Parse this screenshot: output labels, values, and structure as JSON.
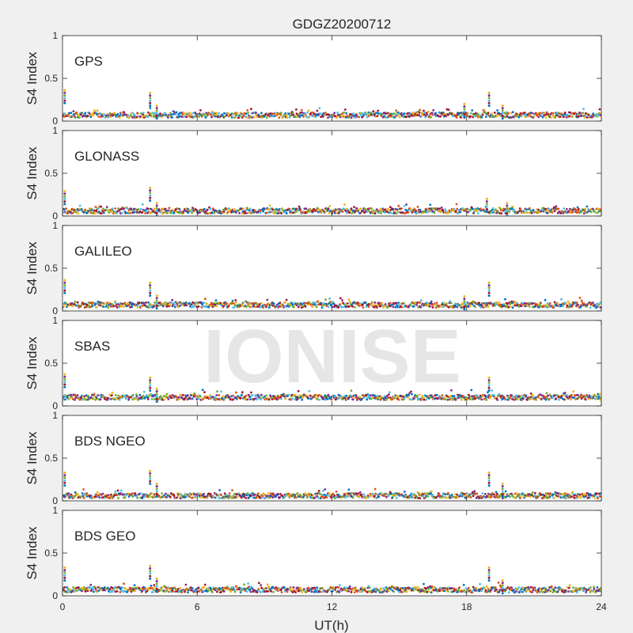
{
  "chart_data": {
    "type": "scatter",
    "title": "GDGZ20200712",
    "xlabel": "UT(h)",
    "ylabel": "S4 Index",
    "xlim": [
      0,
      24
    ],
    "ylim": [
      0,
      1
    ],
    "xticks": [
      0,
      6,
      12,
      18,
      24
    ],
    "yticks": [
      0,
      0.5,
      1
    ],
    "xticklabels": [
      "0",
      "6",
      "12",
      "18",
      "24"
    ],
    "yticklabels": [
      "0",
      "0.5",
      "1"
    ],
    "grid": false,
    "watermark": "IONISE",
    "series_colors": [
      "#0072BD",
      "#D95319",
      "#EDB120",
      "#7E2F8E",
      "#77AC30",
      "#4DBEEE",
      "#A2142F"
    ],
    "panels": [
      {
        "label": "GPS",
        "baseline": 0.07,
        "spikes": [
          [
            0.1,
            0.36
          ],
          [
            3.9,
            0.33
          ],
          [
            4.2,
            0.18
          ],
          [
            17.9,
            0.2
          ],
          [
            19.0,
            0.33
          ],
          [
            19.6,
            0.18
          ]
        ]
      },
      {
        "label": "GLONASS",
        "baseline": 0.06,
        "spikes": [
          [
            0.1,
            0.29
          ],
          [
            3.9,
            0.33
          ],
          [
            4.2,
            0.15
          ],
          [
            18.9,
            0.2
          ],
          [
            19.8,
            0.15
          ]
        ]
      },
      {
        "label": "GALILEO",
        "baseline": 0.07,
        "spikes": [
          [
            0.1,
            0.36
          ],
          [
            3.9,
            0.33
          ],
          [
            4.2,
            0.18
          ],
          [
            17.9,
            0.17
          ],
          [
            19.0,
            0.33
          ]
        ]
      },
      {
        "label": "SBAS",
        "baseline": 0.1,
        "spikes": [
          [
            0.1,
            0.37
          ],
          [
            3.9,
            0.33
          ],
          [
            4.2,
            0.2
          ],
          [
            19.0,
            0.33
          ]
        ]
      },
      {
        "label": "BDS NGEO",
        "baseline": 0.06,
        "spikes": [
          [
            0.1,
            0.33
          ],
          [
            3.9,
            0.35
          ],
          [
            4.2,
            0.2
          ],
          [
            19.0,
            0.33
          ],
          [
            19.6,
            0.2
          ]
        ]
      },
      {
        "label": "BDS GEO",
        "baseline": 0.07,
        "spikes": [
          [
            0.1,
            0.33
          ],
          [
            3.9,
            0.35
          ],
          [
            4.2,
            0.2
          ],
          [
            19.0,
            0.33
          ],
          [
            19.6,
            0.18
          ]
        ]
      }
    ]
  }
}
